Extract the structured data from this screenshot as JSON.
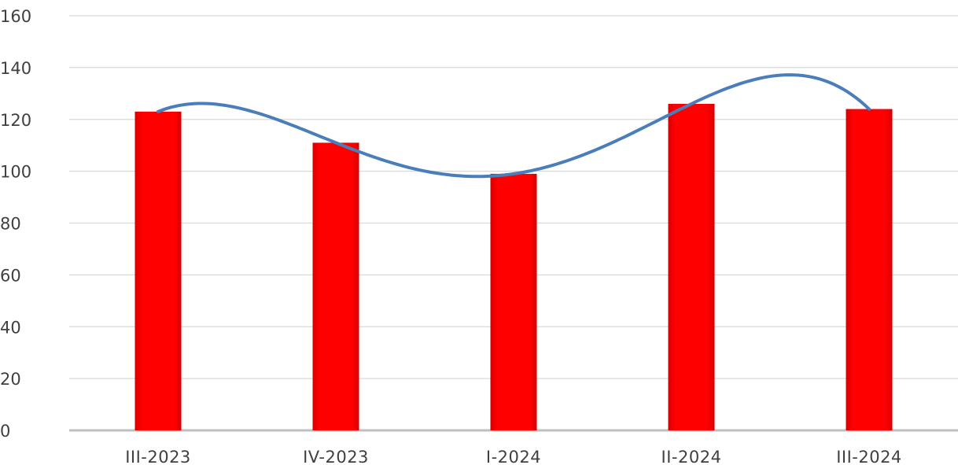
{
  "chart_data": {
    "type": "bar",
    "categories": [
      "III-2023",
      "IV-2023",
      "I-2024",
      "II-2024",
      "III-2024"
    ],
    "series": [
      {
        "values": [
          123,
          111,
          99,
          126,
          124
        ]
      }
    ],
    "trendline": {
      "type": "polynomial",
      "values": [
        123,
        111,
        99,
        126,
        124
      ]
    },
    "yticks": [
      "0",
      "20",
      "40",
      "60",
      "80",
      "100",
      "120",
      "140",
      "160"
    ],
    "ylim": [
      0,
      160
    ],
    "grid": true,
    "legend": "none",
    "title": "",
    "xlabel": "",
    "ylabel": "",
    "colors": {
      "bar": "#ff0000",
      "trendline": "#4a7ebb"
    }
  }
}
